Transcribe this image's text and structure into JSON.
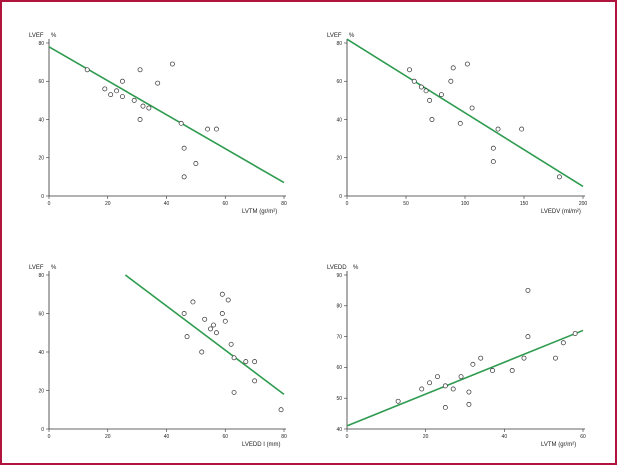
{
  "colors": {
    "border": "#b0143c",
    "regression": "#2e9b4f",
    "marker": "#333333"
  },
  "chart_data": [
    {
      "type": "scatter",
      "ylabel": "LVEF",
      "yunit": "%",
      "xlabel": "LVTM",
      "xunit": "(gr/m²)",
      "xlim": [
        0,
        80
      ],
      "ylim": [
        0,
        80
      ],
      "xticks": [
        "0",
        "20",
        "40",
        "60",
        "80"
      ],
      "yticks": [
        "0",
        "20",
        "40",
        "60",
        "80"
      ],
      "grid": false,
      "points": [
        [
          13,
          66
        ],
        [
          19,
          56
        ],
        [
          21,
          53
        ],
        [
          23,
          55
        ],
        [
          25,
          60
        ],
        [
          25,
          52
        ],
        [
          29,
          50
        ],
        [
          31,
          40
        ],
        [
          31,
          66
        ],
        [
          32,
          47
        ],
        [
          34,
          46
        ],
        [
          37,
          59
        ],
        [
          42,
          69
        ],
        [
          45,
          38
        ],
        [
          46,
          25
        ],
        [
          46,
          10
        ],
        [
          50,
          17
        ],
        [
          54,
          35
        ],
        [
          57,
          35
        ]
      ],
      "trend": [
        [
          0,
          78
        ],
        [
          80,
          7
        ]
      ]
    },
    {
      "type": "scatter",
      "ylabel": "LVEF",
      "yunit": "%",
      "xlabel": "LVEDV",
      "xunit": "(ml/m²)",
      "xlim": [
        0,
        200
      ],
      "ylim": [
        0,
        80
      ],
      "xticks": [
        "0",
        "50",
        "100",
        "150",
        "200"
      ],
      "yticks": [
        "0",
        "20",
        "40",
        "60",
        "80"
      ],
      "grid": false,
      "points": [
        [
          53,
          66
        ],
        [
          57,
          60
        ],
        [
          63,
          57
        ],
        [
          67,
          55
        ],
        [
          70,
          50
        ],
        [
          72,
          40
        ],
        [
          80,
          53
        ],
        [
          88,
          60
        ],
        [
          90,
          67
        ],
        [
          96,
          38
        ],
        [
          102,
          69
        ],
        [
          106,
          46
        ],
        [
          124,
          25
        ],
        [
          124,
          18
        ],
        [
          128,
          35
        ],
        [
          148,
          35
        ],
        [
          180,
          10
        ]
      ],
      "trend": [
        [
          0,
          82
        ],
        [
          200,
          5
        ]
      ]
    },
    {
      "type": "scatter",
      "ylabel": "LVEF",
      "yunit": "%",
      "xlabel": "LVEDD",
      "xunit": "I (mm)",
      "xlim": [
        0,
        80
      ],
      "ylim": [
        0,
        80
      ],
      "xticks": [
        "0",
        "20",
        "40",
        "60",
        "80"
      ],
      "yticks": [
        "0",
        "20",
        "40",
        "60",
        "80"
      ],
      "grid": false,
      "points": [
        [
          46,
          60
        ],
        [
          47,
          48
        ],
        [
          49,
          66
        ],
        [
          52,
          40
        ],
        [
          53,
          57
        ],
        [
          55,
          52
        ],
        [
          56,
          54
        ],
        [
          57,
          50
        ],
        [
          59,
          70
        ],
        [
          59,
          60
        ],
        [
          60,
          56
        ],
        [
          61,
          67
        ],
        [
          62,
          44
        ],
        [
          63,
          37
        ],
        [
          63,
          19
        ],
        [
          67,
          35
        ],
        [
          70,
          35
        ],
        [
          70,
          25
        ],
        [
          79,
          10
        ]
      ],
      "trend": [
        [
          26,
          80
        ],
        [
          80,
          18
        ]
      ]
    },
    {
      "type": "scatter",
      "ylabel": "LVEDD",
      "yunit": "%",
      "xlabel": "LVTM",
      "xunit": "(gr/m²)",
      "xlim": [
        0,
        60
      ],
      "ylim": [
        40,
        90
      ],
      "xticks": [
        "0",
        "20",
        "40",
        "60"
      ],
      "yticks": [
        "40",
        "50",
        "60",
        "70",
        "80",
        "90"
      ],
      "grid": false,
      "points": [
        [
          13,
          49
        ],
        [
          19,
          53
        ],
        [
          21,
          55
        ],
        [
          23,
          57
        ],
        [
          25,
          47
        ],
        [
          25,
          54
        ],
        [
          27,
          53
        ],
        [
          29,
          57
        ],
        [
          31,
          48
        ],
        [
          31,
          52
        ],
        [
          32,
          61
        ],
        [
          34,
          63
        ],
        [
          37,
          59
        ],
        [
          42,
          59
        ],
        [
          45,
          63
        ],
        [
          46,
          70
        ],
        [
          46,
          85
        ],
        [
          53,
          63
        ],
        [
          55,
          68
        ],
        [
          58,
          71
        ]
      ],
      "trend": [
        [
          0,
          41
        ],
        [
          60,
          72
        ]
      ]
    }
  ]
}
